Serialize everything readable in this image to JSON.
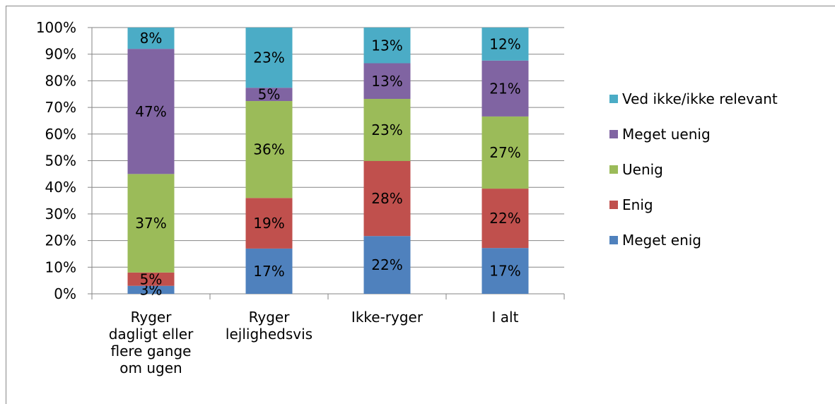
{
  "chart_data": {
    "type": "stacked_bar",
    "categories": [
      "Ryger dagligt eller flere gange om ugen",
      "Ryger lejlighedsvis",
      "Ikke-ryger",
      "I alt"
    ],
    "series": [
      {
        "name": "Meget enig",
        "color": "#4f81bd",
        "values": [
          3,
          17,
          21.7,
          17.2
        ],
        "value_labels": [
          "3%",
          "17%",
          "22%",
          "17%"
        ]
      },
      {
        "name": "Enig",
        "color": "#c0504d",
        "values": [
          5,
          19,
          28.2,
          22.3
        ],
        "value_labels": [
          "5%",
          "19%",
          "28%",
          "22%"
        ]
      },
      {
        "name": "Uenig",
        "color": "#9bbb59",
        "values": [
          37,
          36.4,
          23.3,
          27.1
        ],
        "value_labels": [
          "37%",
          "36%",
          "23%",
          "27%"
        ]
      },
      {
        "name": "Meget uenig",
        "color": "#8064a2",
        "values": [
          47,
          5,
          13.4,
          21
        ],
        "value_labels": [
          "47%",
          "5%",
          "13%",
          "21%"
        ]
      },
      {
        "name": "Ved ikke/ikke relevant",
        "color": "#4bacc6",
        "values": [
          8,
          22.6,
          13.4,
          12.4
        ],
        "value_labels": [
          "8%",
          "23%",
          "13%",
          "12%"
        ]
      }
    ],
    "ylim": [
      0,
      100
    ],
    "yticks": [
      {
        "value": 0,
        "label": "0%"
      },
      {
        "value": 10,
        "label": "10%"
      },
      {
        "value": 20,
        "label": "20%"
      },
      {
        "value": 30,
        "label": "30%"
      },
      {
        "value": 40,
        "label": "40%"
      },
      {
        "value": 50,
        "label": "50%"
      },
      {
        "value": 60,
        "label": "60%"
      },
      {
        "value": 70,
        "label": "70%"
      },
      {
        "value": 80,
        "label": "80%"
      },
      {
        "value": 90,
        "label": "90%"
      },
      {
        "value": 100,
        "label": "100%"
      }
    ],
    "grid": true,
    "legend": "right"
  }
}
